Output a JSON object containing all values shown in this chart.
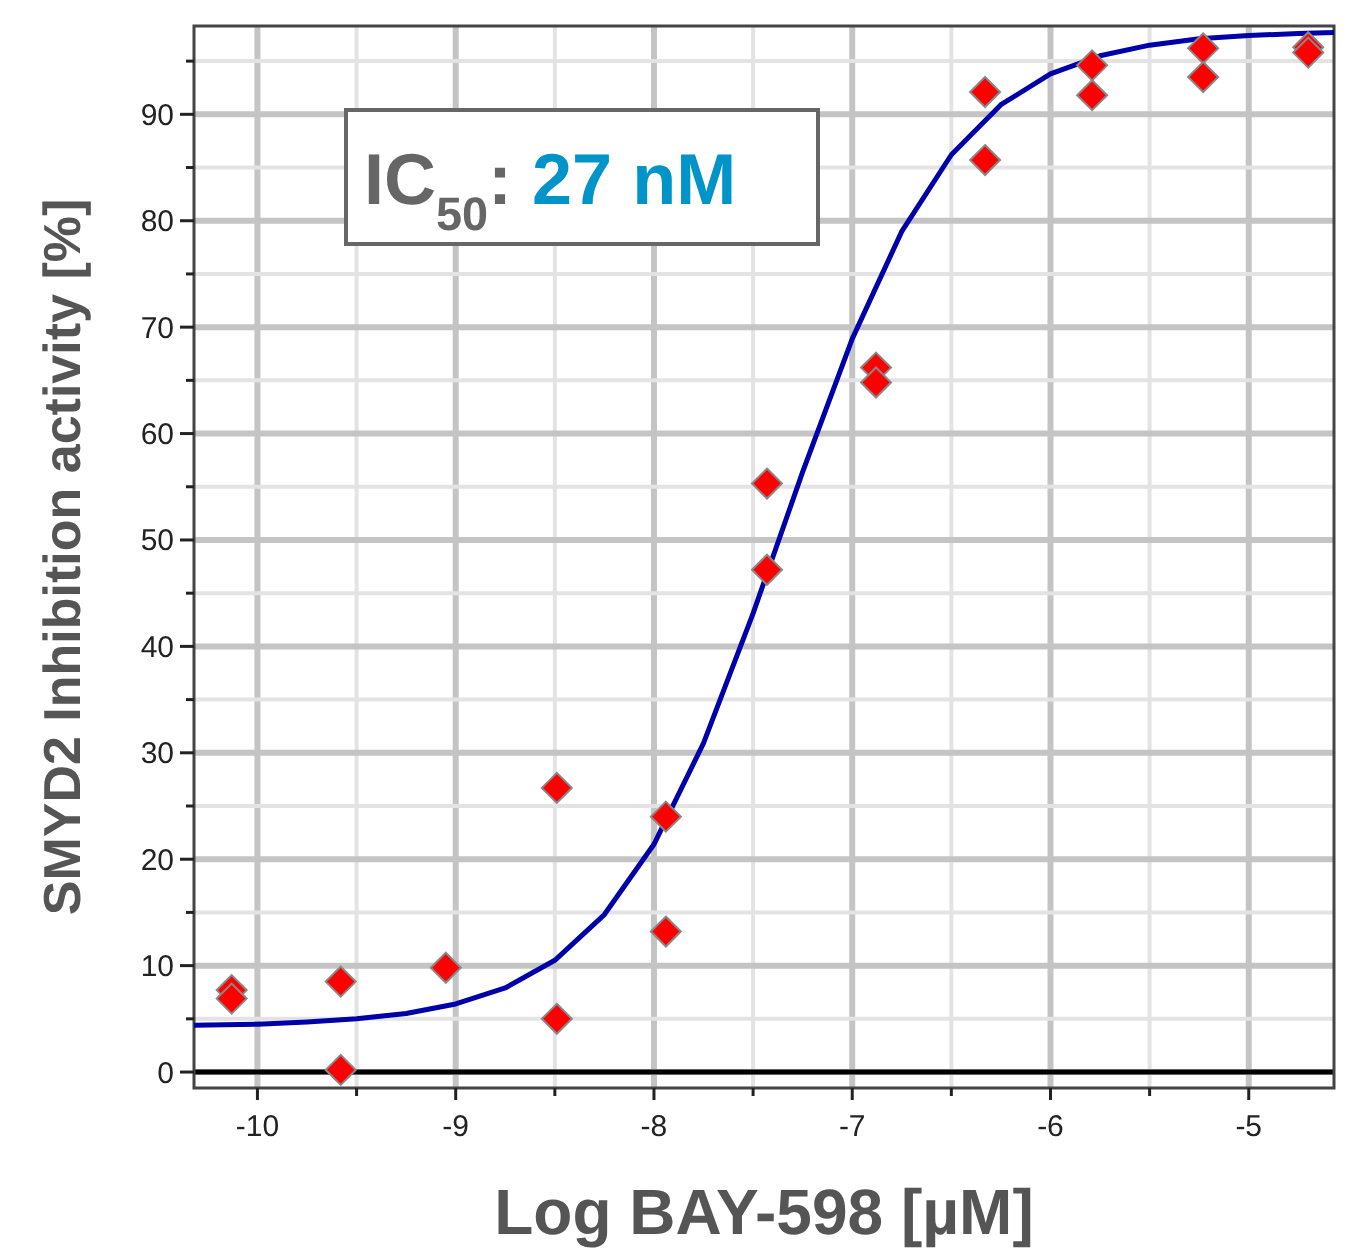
{
  "chart_data": {
    "type": "scatter",
    "xlabel": "Log BAY-598 [µM]",
    "ylabel": "SMYD2 Inhibition activity [%]",
    "annotations": [
      "IC$_{50}$: 27 nM"
    ],
    "xlim": [
      -10.32,
      -4.57
    ],
    "ylim": [
      -1.5,
      98.3
    ],
    "xticks": [
      -10,
      {
        "value": -9.5,
        "label": null
      },
      -9,
      {
        "value": -8.5,
        "label": null
      },
      -8,
      {
        "value": -7.5,
        "label": null
      },
      -7,
      {
        "value": -6.5,
        "label": null
      },
      -6,
      {
        "value": -5.5,
        "label": null
      },
      -5
    ],
    "yticks": [
      0,
      {
        "value": 5,
        "label": null
      },
      10,
      {
        "value": 15,
        "label": null
      },
      20,
      {
        "value": 25,
        "label": null
      },
      30,
      {
        "value": 35,
        "label": null
      },
      40,
      {
        "value": 45,
        "label": null
      },
      50,
      {
        "value": 55,
        "label": null
      },
      60,
      {
        "value": 65,
        "label": null
      },
      70,
      {
        "value": 75,
        "label": null
      },
      80,
      {
        "value": 85,
        "label": null
      },
      90,
      {
        "value": 95,
        "label": null
      }
    ],
    "grid": true,
    "marker": "diamond",
    "ref_lines": [
      {
        "axis": "y",
        "value": 0,
        "color": "#000000"
      }
    ],
    "series": [
      {
        "type": "line",
        "color": "#0000aa",
        "marker": "none",
        "x": [
          -10.32,
          -10,
          -9.75,
          -9.5,
          -9.25,
          -9,
          -8.75,
          -8.5,
          -8.25,
          -8,
          -7.75,
          -7.5,
          -7.25,
          -7,
          -6.75,
          -6.5,
          -6.25,
          -6,
          -5.75,
          -5.5,
          -5.25,
          -5,
          -4.75,
          -4.57
        ],
        "values": [
          4.4,
          4.5,
          4.7,
          5.0,
          5.5,
          6.4,
          7.9,
          10.5,
          14.8,
          21.4,
          30.9,
          43.1,
          56.4,
          68.9,
          79.0,
          86.2,
          90.9,
          93.8,
          95.5,
          96.5,
          97.1,
          97.4,
          97.6,
          97.7
        ]
      },
      {
        "color": "#ff0000",
        "x": [
          -10.13,
          -10.13,
          -9.58,
          -9.58,
          -9.05,
          -8.49,
          -8.49,
          -7.94,
          -7.94,
          -7.43,
          -7.43,
          -6.88,
          -6.88,
          -6.33,
          -6.33,
          -5.79,
          -5.79,
          -5.23,
          -5.23,
          -4.7,
          -4.7
        ],
        "values": [
          7.7,
          6.9,
          8.5,
          0.2,
          9.8,
          26.7,
          5.0,
          24.0,
          13.2,
          55.3,
          47.2,
          66.2,
          64.8,
          92.1,
          85.7,
          94.6,
          91.8,
          96.2,
          93.5,
          96.3,
          95.8
        ]
      }
    ]
  }
}
